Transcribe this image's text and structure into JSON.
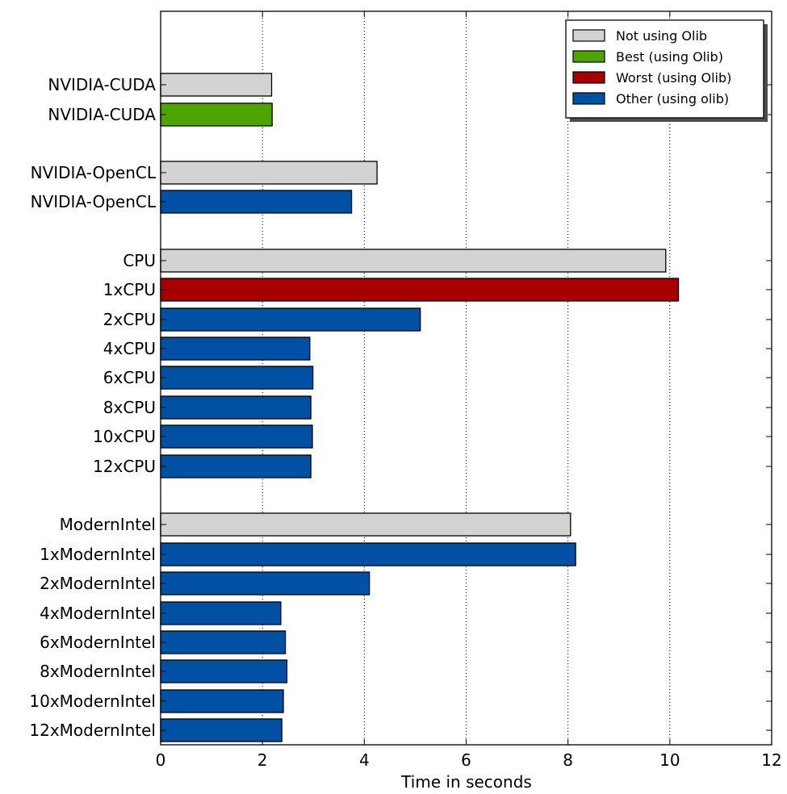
{
  "chart_data": {
    "type": "bar",
    "orientation": "horizontal",
    "xlabel": "Time in seconds",
    "ylabel": "",
    "xlim": [
      0,
      12
    ],
    "xticks": [
      "0",
      "2",
      "4",
      "6",
      "8",
      "10",
      "12"
    ],
    "grid": "vertical dotted lines at x tick positions",
    "legend_position": "top-right",
    "legend": [
      {
        "label": "Not using Olib",
        "color": "#d3d3d3"
      },
      {
        "label": "Best (using Olib)",
        "color": "#4ea400"
      },
      {
        "label": "Worst (using Olib)",
        "color": "#a70000"
      },
      {
        "label": "Other (using olib)",
        "color": "#0050a4"
      }
    ],
    "bars": [
      {
        "label": "NVIDIA-CUDA",
        "value": 2.18,
        "group": "Not using Olib"
      },
      {
        "label": "NVIDIA-CUDA",
        "value": 2.19,
        "group": "Best (using Olib)"
      },
      {
        "label": "NVIDIA-OpenCL",
        "value": 4.25,
        "group": "Not using Olib"
      },
      {
        "label": "NVIDIA-OpenCL",
        "value": 3.75,
        "group": "Other (using olib)"
      },
      {
        "label": "CPU",
        "value": 9.92,
        "group": "Not using Olib"
      },
      {
        "label": "1xCPU",
        "value": 10.17,
        "group": "Worst (using Olib)"
      },
      {
        "label": "2xCPU",
        "value": 5.1,
        "group": "Other (using olib)"
      },
      {
        "label": "4xCPU",
        "value": 2.93,
        "group": "Other (using olib)"
      },
      {
        "label": "6xCPU",
        "value": 2.99,
        "group": "Other (using olib)"
      },
      {
        "label": "8xCPU",
        "value": 2.95,
        "group": "Other (using olib)"
      },
      {
        "label": "10xCPU",
        "value": 2.98,
        "group": "Other (using olib)"
      },
      {
        "label": "12xCPU",
        "value": 2.95,
        "group": "Other (using olib)"
      },
      {
        "label": "ModernIntel",
        "value": 8.05,
        "group": "Not using Olib"
      },
      {
        "label": "1xModernIntel",
        "value": 8.15,
        "group": "Other (using olib)"
      },
      {
        "label": "2xModernIntel",
        "value": 4.1,
        "group": "Other (using olib)"
      },
      {
        "label": "4xModernIntel",
        "value": 2.36,
        "group": "Other (using olib)"
      },
      {
        "label": "6xModernIntel",
        "value": 2.45,
        "group": "Other (using olib)"
      },
      {
        "label": "8xModernIntel",
        "value": 2.48,
        "group": "Other (using olib)"
      },
      {
        "label": "10xModernIntel",
        "value": 2.41,
        "group": "Other (using olib)"
      },
      {
        "label": "12xModernIntel",
        "value": 2.38,
        "group": "Other (using olib)"
      }
    ]
  }
}
